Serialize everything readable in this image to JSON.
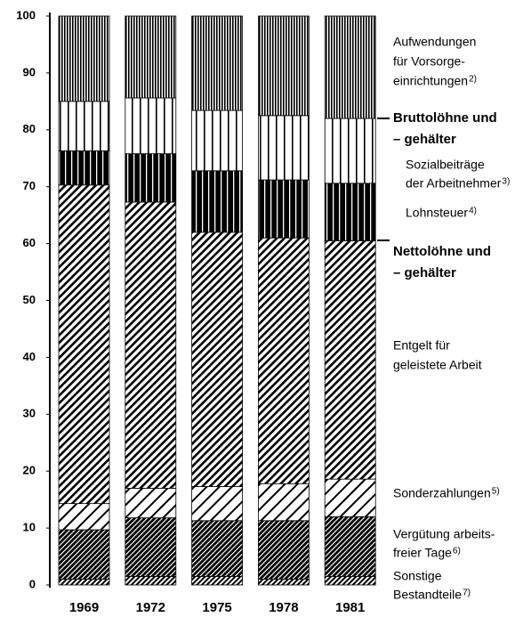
{
  "chart_data": {
    "type": "stacked_bar",
    "categories": [
      "1969",
      "1972",
      "1975",
      "1978",
      "1981"
    ],
    "ylim": [
      0,
      100
    ],
    "yticks": [
      0,
      10,
      20,
      30,
      40,
      50,
      60,
      70,
      80,
      90,
      100
    ],
    "series": [
      {
        "name": [
          "Sonstige",
          "Bestandteile"
        ],
        "note": "7)",
        "color": "#000",
        "values": [
          1,
          1.5,
          1.5,
          1,
          1.5
        ]
      },
      {
        "name": [
          "Vergütung arbeits-",
          "freier Tage"
        ],
        "note": "6)",
        "color": "#000",
        "values": [
          8.7,
          10.3,
          9.8,
          10.3,
          10.5
        ]
      },
      {
        "name": [
          "Sonderzahlungen"
        ],
        "note": "5)",
        "color": "#000",
        "values": [
          4.6,
          5.2,
          6,
          6.5,
          6.6
        ]
      },
      {
        "name": [
          "Entgelt für",
          "geleistete Arbeit"
        ],
        "color": "#000",
        "values": [
          56,
          50.3,
          44.7,
          43.2,
          41.9
        ]
      },
      {
        "name": [
          "Lohnsteuer"
        ],
        "note": "4)",
        "color": "#000",
        "values": [
          6,
          8.5,
          10.8,
          10.2,
          10.1
        ]
      },
      {
        "name": [
          "Sozialbeiträge",
          "der Arbeitnehmer"
        ],
        "note": "3)",
        "color": "#000",
        "values": [
          8.7,
          9.8,
          10.6,
          11.3,
          11.4
        ]
      },
      {
        "name": [
          "Aufwendungen",
          "für Vorsorge-",
          "einrichtungen"
        ],
        "note": "2)",
        "color": "#000",
        "values": [
          15,
          14.4,
          16.6,
          17.5,
          18
        ]
      }
    ],
    "annotations": [
      {
        "lines": [
          "Bruttolöhne und",
          "– gehälter"
        ]
      },
      {
        "lines": [
          "Nettolöhne und",
          "– gehälter"
        ]
      }
    ]
  }
}
